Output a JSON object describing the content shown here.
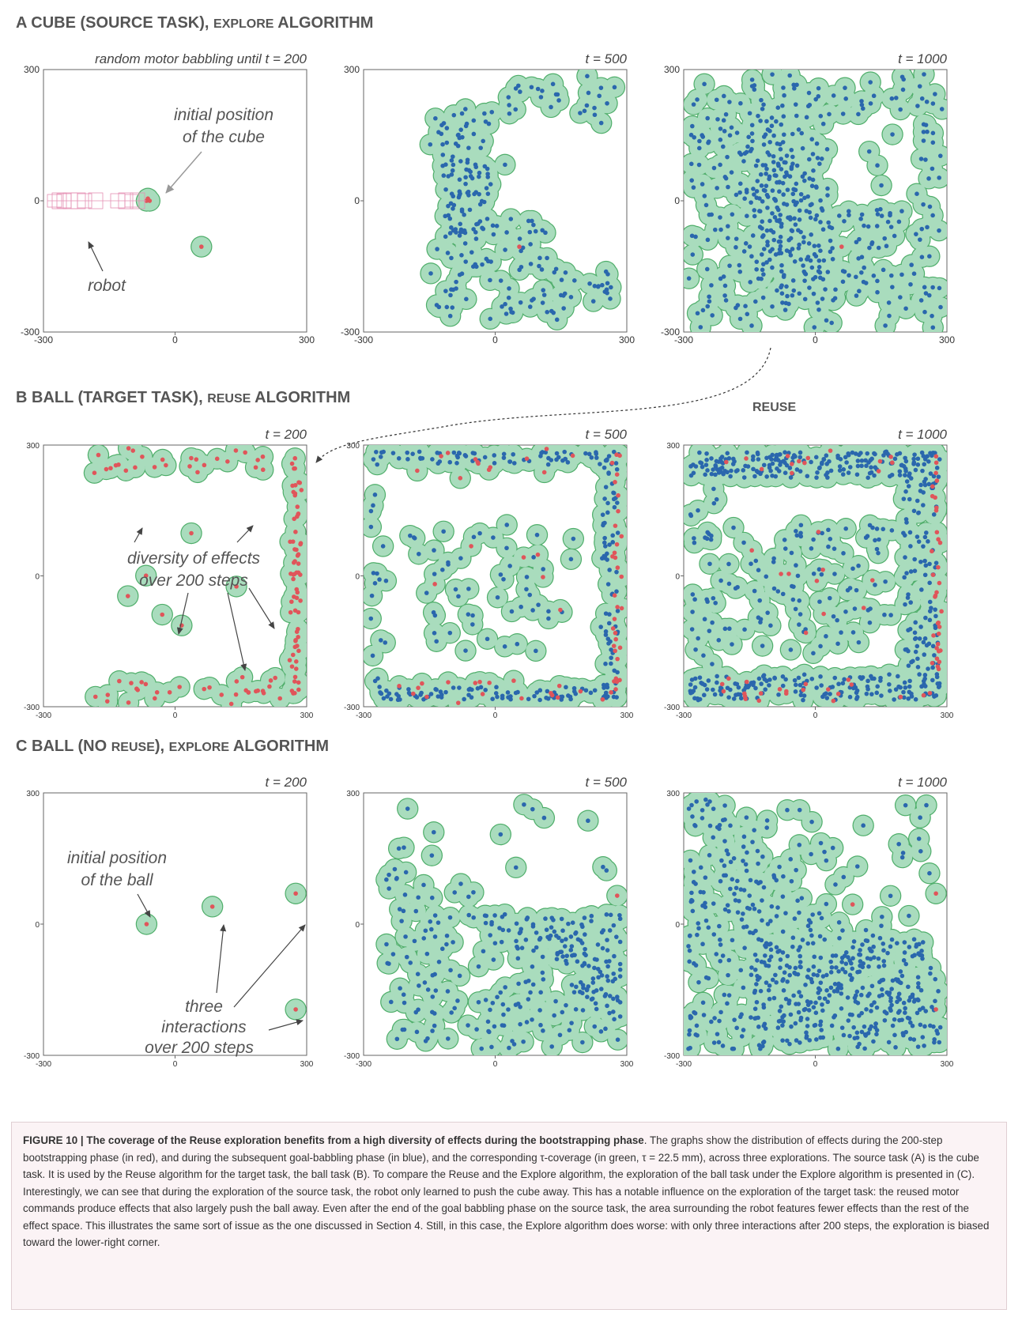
{
  "sections": [
    {
      "letter": "A",
      "title_main": "CUBE (SOURCE TASK), ",
      "title_alg": "Explore",
      "title_end": " ALGORITHM"
    },
    {
      "letter": "B",
      "title_main": "BALL (TARGET TASK), ",
      "title_alg": "Reuse",
      "title_end": " ALGORITHM"
    },
    {
      "letter": "C",
      "title_main": "BALL (NO ",
      "title_alg": "Reuse",
      "title_mid": "), ",
      "title_alg2": "Explore",
      "title_end": " ALGORITHM"
    }
  ],
  "reuse_arrow_label": "Reuse",
  "colors": {
    "coverage": "#a9dcbd",
    "coverage_edge": "#4fae6a",
    "red_effect": "#e0555a",
    "blue_effect": "#2a67ad",
    "robot": "#e58fb3",
    "annotation": "#555555"
  },
  "chart_data": {
    "type": "scatter",
    "xlim": [
      -300,
      300
    ],
    "ylim": [
      -300,
      300
    ],
    "xticks": [
      "-300",
      "0",
      "300"
    ],
    "yticks": [
      "300",
      "0",
      "-300"
    ],
    "tau_mm": 22.5,
    "panels": [
      {
        "id": "A1",
        "title": "random motor babbling until t = 200",
        "red": [
          [
            -65,
            0
          ],
          [
            -58,
            0
          ],
          [
            -62,
            5
          ],
          [
            60,
            -105
          ]
        ],
        "blue": [],
        "n_blue": 0,
        "dist": null,
        "annotations": [
          "initial position",
          "of the cube",
          "robot"
        ],
        "robot": true
      },
      {
        "id": "A2",
        "title": "t = 500",
        "red": [
          [
            55,
            -105
          ]
        ],
        "blue": [],
        "n_blue": 240,
        "dist": "A2",
        "annotations": []
      },
      {
        "id": "A3",
        "title": "t = 1000",
        "red": [
          [
            60,
            -105
          ]
        ],
        "blue": [],
        "n_blue": 560,
        "dist": "A3",
        "annotations": []
      },
      {
        "id": "B1",
        "title": "t = 200",
        "red": [],
        "blue": [],
        "n_red": 130,
        "dist": "B1",
        "annotations": [
          "diversity of effects",
          "over 200 steps"
        ]
      },
      {
        "id": "B2",
        "title": "t = 500",
        "red": [],
        "blue": [],
        "n_blue": 300,
        "dist": "B2",
        "annotations": []
      },
      {
        "id": "B3",
        "title": "t = 1000",
        "red": [],
        "blue": [],
        "n_blue": 600,
        "dist": "B3",
        "annotations": []
      },
      {
        "id": "C1",
        "title": "t = 200",
        "red": [
          [
            -65,
            0
          ],
          [
            85,
            40
          ],
          [
            275,
            70
          ],
          [
            275,
            -195
          ]
        ],
        "blue": [],
        "n_blue": 0,
        "dist": null,
        "annotations": [
          "initial position",
          "of the ball",
          "three",
          "interactions",
          "over 200 steps"
        ]
      },
      {
        "id": "C2",
        "title": "t = 500",
        "red": [
          [
            278,
            65
          ]
        ],
        "blue": [],
        "n_blue": 300,
        "dist": "C2",
        "annotations": []
      },
      {
        "id": "C3",
        "title": "t = 1000",
        "red": [
          [
            275,
            70
          ],
          [
            275,
            -195
          ],
          [
            85,
            45
          ]
        ],
        "blue": [],
        "n_blue": 600,
        "dist": "C3",
        "annotations": []
      }
    ]
  },
  "caption": {
    "label": "FIGURE 10 | The coverage of the Reuse exploration benefits from a high diversity of effects during the bootstrapping phase",
    "body": ". The graphs show the distribution of effects during the 200-step bootstrapping phase (in red), and during the subsequent goal-babbling phase (in blue), and the corresponding τ-coverage (in green, τ = 22.5 mm), across three explorations. The source task (A) is the cube task. It is used by the Reuse algorithm for the target task, the ball task (B). To compare the Reuse and the Explore algorithm, the exploration of the ball task under the Explore algorithm is presented in (C). Interestingly, we can see that during the exploration of the source task, the robot only learned to push the cube away. This has a notable influence on the exploration of the target task: the reused motor commands produce effects that also largely push the ball away. Even after the end of the goal babbling phase on the source task, the area surrounding the robot features fewer effects than the rest of the effect space. This illustrates the same sort of issue as the one discussed in Section 4. Still, in this case, the Explore algorithm does worse: with only three interactions after 200 steps, the exploration is biased toward the lower-right corner."
  }
}
